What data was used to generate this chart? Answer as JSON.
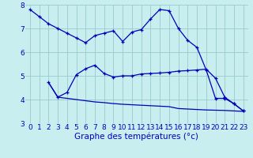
{
  "line1_x": [
    0,
    1,
    2,
    3,
    4,
    5,
    6,
    7,
    8,
    9,
    10,
    11,
    12,
    13,
    14,
    15,
    16,
    17,
    18,
    19,
    20,
    21,
    22,
    23
  ],
  "line1_y": [
    7.8,
    7.5,
    7.2,
    7.0,
    6.8,
    6.6,
    6.4,
    6.7,
    6.8,
    6.9,
    6.45,
    6.85,
    6.95,
    7.4,
    7.8,
    7.75,
    7.0,
    6.5,
    6.2,
    5.25,
    4.05,
    4.05,
    3.82,
    3.52
  ],
  "line2_x": [
    2,
    3,
    4,
    5,
    6,
    7,
    8,
    9,
    10,
    11,
    12,
    13,
    14,
    15,
    16,
    17,
    18,
    19,
    20,
    21,
    22,
    23
  ],
  "line2_y": [
    4.72,
    4.1,
    4.3,
    5.05,
    5.3,
    5.45,
    5.1,
    4.95,
    5.0,
    5.0,
    5.08,
    5.1,
    5.12,
    5.15,
    5.2,
    5.22,
    5.25,
    5.28,
    4.9,
    4.1,
    3.82,
    3.52
  ],
  "line3_x": [
    2,
    3,
    4,
    5,
    6,
    7,
    8,
    9,
    10,
    11,
    12,
    13,
    14,
    15,
    16,
    17,
    18,
    19,
    20,
    21,
    22,
    23
  ],
  "line3_y": [
    4.72,
    4.1,
    4.05,
    4.0,
    3.95,
    3.9,
    3.87,
    3.83,
    3.8,
    3.78,
    3.76,
    3.74,
    3.72,
    3.7,
    3.62,
    3.6,
    3.58,
    3.56,
    3.55,
    3.54,
    3.52,
    3.5
  ],
  "line_color": "#0000bb",
  "bg_color": "#c8eef0",
  "grid_color": "#99cccc",
  "xlabel": "Graphe des températures (°c)",
  "xlim": [
    -0.5,
    23.5
  ],
  "ylim": [
    3,
    8
  ],
  "xticks": [
    0,
    1,
    2,
    3,
    4,
    5,
    6,
    7,
    8,
    9,
    10,
    11,
    12,
    13,
    14,
    15,
    16,
    17,
    18,
    19,
    20,
    21,
    22,
    23
  ],
  "yticks": [
    3,
    4,
    5,
    6,
    7,
    8
  ],
  "xlabel_fontsize": 7.5,
  "tick_fontsize": 6.5
}
